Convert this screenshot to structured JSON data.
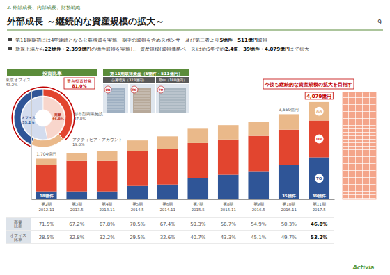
{
  "header": {
    "section": "2. 外部成長、内部成長、財務戦略",
    "title": "外部成長 ～継続的な資産規模の拡大～",
    "page": 9
  },
  "bullets": [
    [
      "第11期期初には4年連続となる公募増資を実施、期中の取得を含めスポンサー及び第三者より",
      "5物件・511億円",
      "取得"
    ],
    [
      "新規上場から",
      "22物件・2,399億円",
      "の物件取得を実施し、資産規模(取得価格ベース)は約5年で約",
      "2.4倍",
      "、",
      "39物件・4,079億円",
      "まで拡大"
    ]
  ],
  "acquisition_panel": {
    "title": "第11期取得資産（5物件・511億円）",
    "groups": [
      "公募増資（323億円）",
      "期中（188億円）"
    ],
    "badges": [
      "UR",
      "TO",
      "TO"
    ]
  },
  "callout": "今後も継続的な資産規模の拡大を目指す",
  "chart_data": [
    {
      "type": "pie",
      "title": "投資比率",
      "data_labels": true,
      "series": [
        {
          "categories": [
            "東京オフィス",
            "都市型商業施設",
            "アクティビア・アカウント"
          ],
          "values": [
            43.2,
            37.8,
            19.0
          ],
          "value_labels": [
            "43.2%",
            "37.8%",
            "19.0%"
          ],
          "colors": [
            "#2f5597",
            "#e2452f",
            "#eab98a"
          ]
        },
        {
          "categories": [
            "オフィス",
            "商業"
          ],
          "values": [
            53.2,
            46.8
          ],
          "value_labels": [
            "53.2%",
            "46.8%"
          ],
          "colors": [
            "#d3dcee",
            "#f8d6cc"
          ]
        }
      ],
      "annotation": {
        "text": "重点投資対象",
        "value": 81.0,
        "label": "81.0%"
      }
    },
    {
      "type": "bar",
      "stacked": true,
      "categories": [
        "第2期",
        "第3期",
        "第4期",
        "第5期",
        "第6期",
        "第7期",
        "第8期",
        "第9期",
        "第10期",
        "第11期"
      ],
      "category_dates": [
        "2012.11",
        "2013.5",
        "2013.11",
        "2014.5",
        "2014.11",
        "2015.5",
        "2015.11",
        "2016.5",
        "2016.11",
        "2017.5"
      ],
      "series": [
        {
          "name": "TO",
          "color": "#2f5597",
          "values": [
            330,
            330,
            330,
            560,
            620,
            880,
            1030,
            1180,
            1440,
            1762
          ]
        },
        {
          "name": "UR",
          "color": "#e2452f",
          "values": [
            1100,
            1280,
            1280,
            1450,
            1480,
            1480,
            1480,
            1480,
            1480,
            1542
          ]
        },
        {
          "name": "AA",
          "color": "#eab98a",
          "values": [
            274,
            340,
            400,
            460,
            540,
            600,
            600,
            600,
            649,
            775
          ]
        }
      ],
      "totals": {
        "values": [
          1704,
          null,
          null,
          null,
          null,
          null,
          null,
          null,
          3569,
          4079
        ],
        "value_labels": [
          "1,704億円",
          null,
          null,
          null,
          null,
          null,
          null,
          null,
          "3,569億円",
          "4,079億円"
        ]
      },
      "property_counts": {
        "values": [
          18,
          null,
          null,
          null,
          null,
          null,
          null,
          null,
          35,
          39
        ],
        "value_labels": [
          "18物件",
          null,
          null,
          null,
          null,
          null,
          null,
          null,
          "35物件",
          "39物件"
        ]
      },
      "ylim": [
        0,
        4600
      ],
      "tick_labels": "x"
    }
  ],
  "table": {
    "rows": [
      {
        "label": [
          "商業",
          "比率"
        ],
        "values": [
          71.5,
          67.2,
          67.8,
          70.5,
          67.4,
          59.3,
          56.7,
          54.9,
          50.3,
          46.8
        ],
        "value_labels": [
          "71.5%",
          "67.2%",
          "67.8%",
          "70.5%",
          "67.4%",
          "59.3%",
          "56.7%",
          "54.9%",
          "50.3%",
          "46.8%"
        ]
      },
      {
        "label": [
          "オフィス",
          "比率"
        ],
        "values": [
          28.5,
          32.8,
          32.2,
          29.5,
          32.6,
          40.7,
          43.3,
          45.1,
          49.7,
          53.2
        ],
        "value_labels": [
          "28.5%",
          "32.8%",
          "32.2%",
          "29.5%",
          "32.6%",
          "40.7%",
          "43.3%",
          "45.1%",
          "49.7%",
          "53.2%"
        ]
      }
    ]
  },
  "footer": "Activia"
}
